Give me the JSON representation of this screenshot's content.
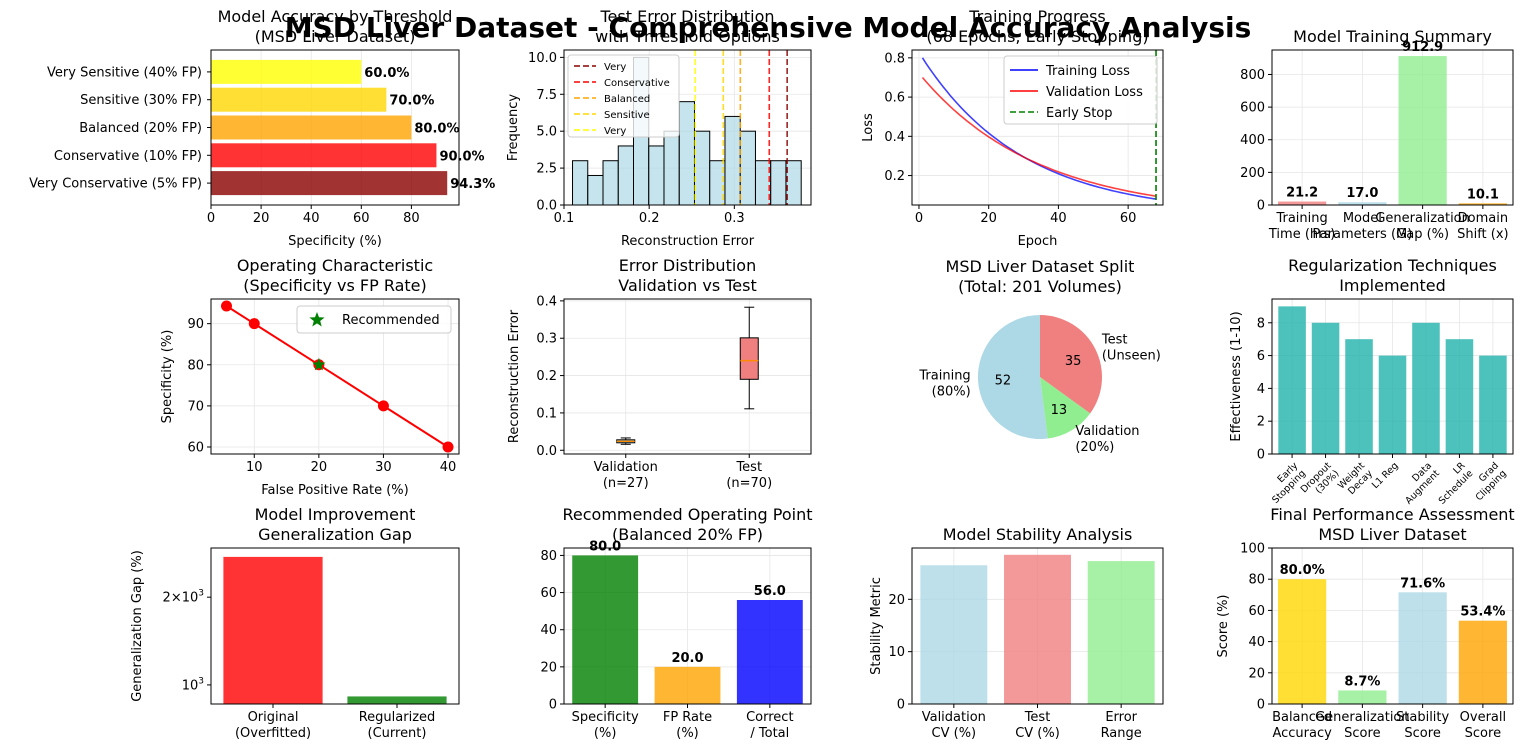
{
  "suptitle": "MSD Liver Dataset - Comprehensive Model Accuracy Analysis",
  "chart_data": [
    {
      "id": "accuracy_threshold",
      "type": "bar",
      "orientation": "horizontal",
      "title": "Model Accuracy by Threshold\n(MSD Liver Dataset)",
      "xlabel": "Specificity (%)",
      "ylabel": "",
      "xlim": [
        0,
        100
      ],
      "xticks": [
        0,
        20,
        40,
        60,
        80
      ],
      "grid": true,
      "categories": [
        "Very Conservative (5% FP)",
        "Conservative (10% FP)",
        "Balanced (20% FP)",
        "Sensitive (30% FP)",
        "Very Sensitive (40% FP)"
      ],
      "values": [
        94.3,
        90.0,
        80.0,
        70.0,
        60.0
      ],
      "value_labels": [
        "94.3%",
        "90.0%",
        "80.0%",
        "70.0%",
        "60.0%"
      ],
      "colors": [
        "#8b0000",
        "#ff0000",
        "#ffa500",
        "#ffd700",
        "#ffff00"
      ]
    },
    {
      "id": "test_error_hist",
      "type": "histogram",
      "title": "Test Error Distribution\nwith Threshold Options",
      "xlabel": "Reconstruction Error",
      "ylabel": "Frequency",
      "xlim": [
        0.1,
        0.39
      ],
      "ylim": [
        0,
        10.5
      ],
      "xticks": [
        0.1,
        0.2,
        0.3
      ],
      "yticks": [
        0.0,
        2.5,
        5.0,
        7.5,
        10.0
      ],
      "bin_start": 0.11,
      "bin_width": 0.0179,
      "counts": [
        3,
        2,
        3,
        4,
        10,
        4,
        5,
        7,
        5,
        3,
        6,
        5,
        3,
        3,
        3
      ],
      "thresholds": [
        {
          "label": "Very",
          "value": 0.362,
          "color": "#8b0000"
        },
        {
          "label": "Conservative",
          "value": 0.341,
          "color": "#ff0000"
        },
        {
          "label": "Balanced",
          "value": 0.307,
          "color": "#ffa500"
        },
        {
          "label": "Sensitive",
          "value": 0.287,
          "color": "#ffd700"
        },
        {
          "label": "Very",
          "value": 0.254,
          "color": "#ffff00"
        }
      ],
      "legend": "top-left"
    },
    {
      "id": "training_progress",
      "type": "line",
      "title": "Training Progress\n(68 Epochs, Early Stopping)",
      "xlabel": "Epoch",
      "ylabel": "Loss",
      "xlim": [
        -2,
        70
      ],
      "ylim": [
        0.05,
        0.84
      ],
      "xticks": [
        0,
        20,
        40,
        60
      ],
      "yticks": [
        0.2,
        0.4,
        0.6,
        0.8
      ],
      "epochs": 68,
      "series": [
        {
          "name": "Training Loss",
          "color": "#0000ff",
          "start": 0.8,
          "end": 0.08
        },
        {
          "name": "Validation Loss",
          "color": "#ff0000",
          "start": 0.7,
          "end": 0.095
        }
      ],
      "early_stop": {
        "name": "Early Stop",
        "epoch": 68,
        "color": "#008000"
      },
      "legend": "top-right"
    },
    {
      "id": "training_summary",
      "type": "bar",
      "title": "Model Training Summary",
      "ylim": [
        0,
        950
      ],
      "yticks": [
        0,
        200,
        400,
        600,
        800
      ],
      "categories": [
        "Training\nTime (hrs)",
        "Model\nParameters (M)",
        "Generalization\nGap (%)",
        "Domain\nShift (x)"
      ],
      "values": [
        21.2,
        17.0,
        912.9,
        10.1
      ],
      "value_labels": [
        "21.2",
        "17.0",
        "912.9",
        "10.1"
      ],
      "colors": [
        "#f08080",
        "#add8e6",
        "#90ee90",
        "#ffa500"
      ]
    },
    {
      "id": "operating_characteristic",
      "type": "line",
      "title": "Operating Characteristic\n(Specificity vs FP Rate)",
      "xlabel": "False Positive Rate (%)",
      "ylabel": "Specificity (%)",
      "xlim": [
        3.3,
        41.7
      ],
      "ylim": [
        58.3,
        96
      ],
      "xticks": [
        10,
        20,
        30,
        40
      ],
      "yticks": [
        60,
        70,
        80,
        90
      ],
      "x": [
        5.7,
        10,
        20,
        30,
        40
      ],
      "y": [
        94.3,
        90,
        80,
        70,
        60
      ],
      "color": "#ff0000",
      "recommended": {
        "name": "Recommended",
        "x": 20,
        "y": 80,
        "color": "#008000"
      },
      "legend": "top-right"
    },
    {
      "id": "error_boxplot",
      "type": "boxplot",
      "title": "Error Distribution\nValidation vs Test",
      "ylabel": "Reconstruction Error",
      "ylim": [
        -0.01,
        0.405
      ],
      "yticks": [
        0.0,
        0.1,
        0.2,
        0.3,
        0.4
      ],
      "categories": [
        "Validation\n(n=27)",
        "Test\n(n=70)"
      ],
      "boxes": [
        {
          "whislo": 0.016,
          "q1": 0.02,
          "med": 0.024,
          "q3": 0.028,
          "whishi": 0.033,
          "color": "#add8e6"
        },
        {
          "whislo": 0.111,
          "q1": 0.19,
          "med": 0.24,
          "q3": 0.301,
          "whishi": 0.383,
          "color": "#f08080"
        }
      ]
    },
    {
      "id": "dataset_split",
      "type": "pie",
      "title": "MSD Liver Dataset Split\n(Total: 201 Volumes)",
      "labels": [
        "Training\n(80%)",
        "Validation\n(20%)",
        "Test\n(Unseen)"
      ],
      "values": [
        52,
        13,
        35
      ],
      "colors": [
        "#add8e6",
        "#90ee90",
        "#f08080"
      ]
    },
    {
      "id": "regularization",
      "type": "bar",
      "title": "Regularization Techniques\nImplemented",
      "ylabel": "Effectiveness (1-10)",
      "ylim": [
        0,
        9.45
      ],
      "yticks": [
        0,
        2,
        4,
        6,
        8
      ],
      "categories": [
        "Early\nStopping",
        "Dropout\n(30%)",
        "Weight\nDecay",
        "L1 Reg",
        "Data\nAugment",
        "LR\nSchedule",
        "Grad\nClipping"
      ],
      "values": [
        9,
        8,
        7,
        6,
        8,
        7,
        6
      ],
      "color": "#20b2aa"
    },
    {
      "id": "model_improvement",
      "type": "bar",
      "title": "Model Improvement\nGeneralization Gap",
      "ylabel": "Generalization Gap (%)",
      "log_scale": true,
      "ylim": [
        860,
        2950
      ],
      "ytick_labels": [
        "10^3",
        "2×10^3"
      ],
      "categories": [
        "Original\n(Overfitted)",
        "Regularized\n(Current)"
      ],
      "values": [
        2750,
        913
      ],
      "colors": [
        "#ff0000",
        "#008000"
      ]
    },
    {
      "id": "operating_point",
      "type": "bar",
      "title": "Recommended Operating Point\n(Balanced 20% FP)",
      "ylim": [
        0,
        84
      ],
      "yticks": [
        0,
        20,
        40,
        60,
        80
      ],
      "categories": [
        "Specificity\n(%)",
        "FP Rate\n(%)",
        "Correct\n/ Total"
      ],
      "values": [
        80.0,
        20.0,
        56.0
      ],
      "value_labels": [
        "80.0",
        "20.0",
        "56.0"
      ],
      "colors": [
        "#008000",
        "#ffa500",
        "#0000ff"
      ]
    },
    {
      "id": "stability",
      "type": "bar",
      "title": "Model Stability Analysis",
      "ylabel": "Stability Metric",
      "ylim": [
        0,
        29.8
      ],
      "yticks": [
        0,
        10,
        20
      ],
      "categories": [
        "Validation\nCV (%)",
        "Test\nCV (%)",
        "Error\nRange"
      ],
      "values": [
        26.5,
        28.5,
        27.3
      ],
      "colors": [
        "#add8e6",
        "#f08080",
        "#90ee90"
      ]
    },
    {
      "id": "final_performance",
      "type": "bar",
      "title": "Final Performance Assessment\nMSD Liver Dataset",
      "ylabel": "Score (%)",
      "ylim": [
        0,
        100
      ],
      "yticks": [
        0,
        20,
        40,
        60,
        80,
        100
      ],
      "categories": [
        "Balanced\nAccuracy",
        "Generalization\nScore",
        "Stability\nScore",
        "Overall\nScore"
      ],
      "values": [
        80.0,
        8.7,
        71.6,
        53.4
      ],
      "value_labels": [
        "80.0%",
        "8.7%",
        "71.6%",
        "53.4%"
      ],
      "colors": [
        "#ffd700",
        "#90ee90",
        "#add8e6",
        "#ffa500"
      ]
    }
  ]
}
